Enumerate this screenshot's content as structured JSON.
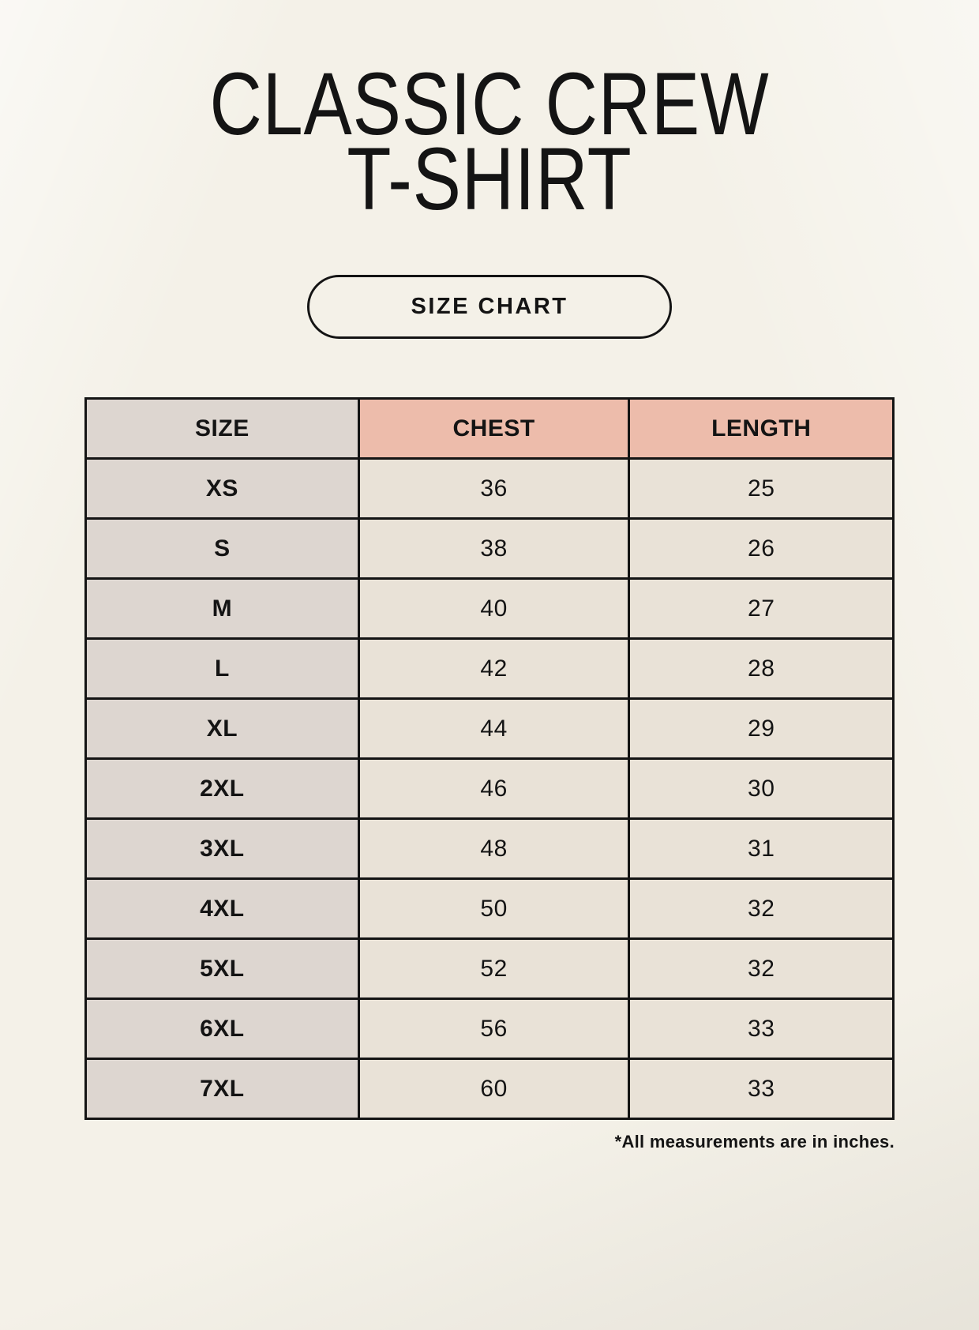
{
  "header": {
    "title_line1": "CLASSIC CREW",
    "title_line2": "T-SHIRT",
    "badge_label": "SIZE CHART"
  },
  "footer": {
    "note": "*All measurements are in inches."
  },
  "colors": {
    "page_bg": "#f4f1e8",
    "cell_bg": "#e9e2d7",
    "size_col_bg": "#ddd6d0",
    "accent": "#edbcab",
    "ink": "#141414"
  },
  "chart_data": {
    "type": "table",
    "title": "CLASSIC CREW T-SHIRT",
    "subtitle": "SIZE CHART",
    "columns": [
      "SIZE",
      "CHEST",
      "LENGTH"
    ],
    "rows": [
      [
        "XS",
        "36",
        "25"
      ],
      [
        "S",
        "38",
        "26"
      ],
      [
        "M",
        "40",
        "27"
      ],
      [
        "L",
        "42",
        "28"
      ],
      [
        "XL",
        "44",
        "29"
      ],
      [
        "2XL",
        "46",
        "30"
      ],
      [
        "3XL",
        "48",
        "31"
      ],
      [
        "4XL",
        "50",
        "32"
      ],
      [
        "5XL",
        "52",
        "32"
      ],
      [
        "6XL",
        "56",
        "33"
      ],
      [
        "7XL",
        "60",
        "33"
      ]
    ],
    "units_note": "*All measurements are in inches.",
    "layout_hints": {
      "header_accent_columns": [
        "CHEST",
        "LENGTH"
      ],
      "units": "inches"
    }
  }
}
